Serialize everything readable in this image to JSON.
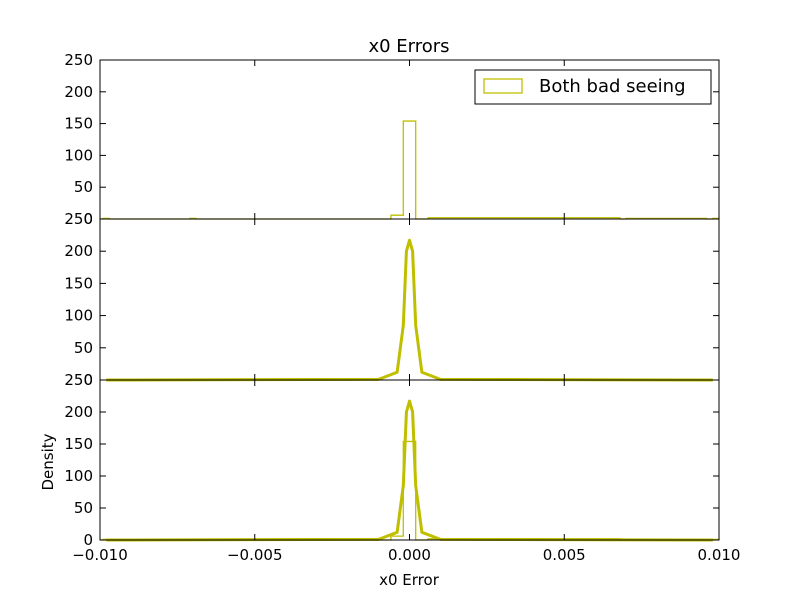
{
  "chart_data": {
    "type": "histogram-stack",
    "title": "x0 Errors",
    "xlabel": "x0 Error",
    "ylabel": "Density",
    "xlim": [
      -0.01,
      0.01
    ],
    "x_ticks": [
      -0.01,
      -0.005,
      0.0,
      0.005,
      0.01
    ],
    "x_tick_labels": [
      "−0.010",
      "−0.005",
      "0.000",
      "0.005",
      "0.010"
    ],
    "ylim": [
      0,
      250
    ],
    "y_ticks": [
      0,
      50,
      100,
      150,
      200,
      250
    ],
    "y_tick_labels": [
      "0",
      "50",
      "100",
      "150",
      "200",
      "250"
    ],
    "color": "#bfbf00",
    "legend": {
      "label": "Both bad seeing",
      "location": "upper-right"
    },
    "histogram": {
      "bin_edges": [
        -0.01,
        -0.0099,
        -0.0097,
        -0.0071,
        -0.0069,
        -0.0006,
        -0.0002,
        0.0002,
        0.0006,
        0.0068,
        0.007,
        0.0096,
        0.0098,
        0.01
      ],
      "counts": [
        0,
        1,
        0,
        1,
        0,
        6,
        154,
        0,
        2,
        0,
        1,
        0,
        1,
        0
      ]
    },
    "density_curve": {
      "x": [
        -0.0098,
        -0.001,
        -0.0004,
        -0.0002,
        -0.0001,
        0.0,
        0.0001,
        0.0002,
        0.0004,
        0.001,
        0.0098
      ],
      "y": [
        0,
        1,
        12,
        85,
        200,
        217,
        200,
        85,
        12,
        1,
        0
      ]
    },
    "panels": [
      {
        "show": [
          "histogram"
        ],
        "legend": true
      },
      {
        "show": [
          "density_curve"
        ],
        "legend": false
      },
      {
        "show": [
          "histogram",
          "density_curve"
        ],
        "legend": false
      }
    ],
    "grid": false
  }
}
